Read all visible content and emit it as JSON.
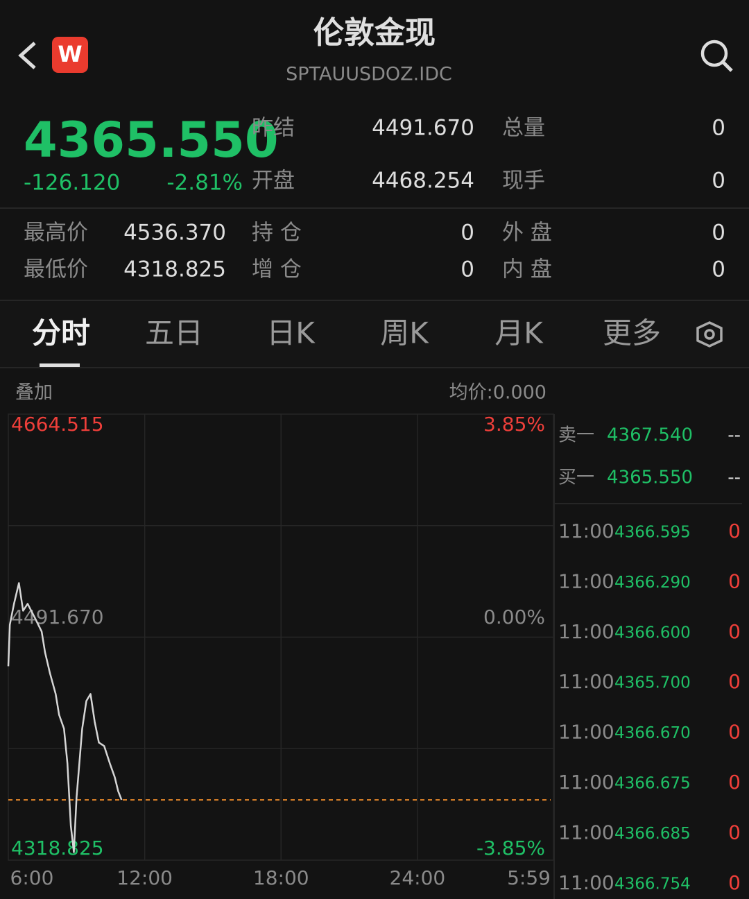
{
  "header": {
    "logo": "W",
    "title": "伦敦金现",
    "code": "SPTAUUSDOZ.IDC"
  },
  "quote": {
    "price": "4365.550",
    "change": "-126.120",
    "change_pct": "-2.81%",
    "stats": [
      {
        "label": "昨结",
        "value": "4491.670"
      },
      {
        "label": "总量",
        "value": 0
      },
      {
        "label": "开盘",
        "value": "4468.254"
      },
      {
        "label": "现手",
        "value": 0
      },
      {
        "label": "最高价",
        "value": "4536.370"
      },
      {
        "label": "持 仓",
        "value": 0
      },
      {
        "label": "外 盘",
        "value": 0
      },
      {
        "label": "最低价",
        "value": "4318.825"
      },
      {
        "label": "增 仓",
        "value": 0
      },
      {
        "label": "内 盘",
        "value": 0
      }
    ]
  },
  "tabs": [
    "分时",
    "五日",
    "日K",
    "周K",
    "月K",
    "更多"
  ],
  "chart_header": {
    "overlay": "叠加",
    "avg_price": "均价:0.000"
  },
  "chart_data": {
    "type": "line",
    "x": [
      0,
      4,
      15,
      28,
      39,
      51,
      70,
      88,
      97,
      110,
      125,
      134,
      147,
      156,
      165,
      173,
      180,
      195,
      206,
      217,
      228,
      239,
      253,
      268,
      281,
      290,
      299
    ],
    "series": [
      {
        "color": "#d6d6d6",
        "values": [
          4469.1,
          4501.3,
          4517.5,
          4533.6,
          4512.1,
          4517.5,
          4506.7,
          4496,
          4479.8,
          4463.6,
          4447.6,
          4431.5,
          4420.7,
          4393.8,
          4345.4,
          4325,
          4367,
          4420.7,
          4442.2,
          4447.6,
          4426.1,
          4410,
          4407.3,
          4393.8,
          4383.1,
          4372.3,
          4365.55
        ]
      }
    ],
    "price_line": {
      "value": 4365.55,
      "color": "#e8892b"
    },
    "xlim": [
      0,
      1439
    ],
    "xticks": [
      {
        "value": 0,
        "label": "6:00"
      },
      {
        "value": 360,
        "label": "12:00"
      },
      {
        "value": 720,
        "label": "18:00"
      },
      {
        "value": 1080,
        "label": "24:00"
      },
      {
        "value": 1439,
        "label": "5:59"
      }
    ],
    "ylim": [
      4318.825,
      4664.515
    ],
    "yticks": [
      4664.515,
      {
        "value": 4491.67,
        "label": "4491.670"
      },
      4318.825
    ],
    "y2lim": [
      -3.85,
      3.85
    ],
    "y2ticks": [
      {
        "value": 3.85,
        "label": "3.85%"
      },
      {
        "value": 0,
        "label": "0.00%"
      },
      {
        "value": -3.85,
        "label": "-3.85%"
      }
    ],
    "grid": true
  },
  "order_book": [
    {
      "label": "卖一",
      "price": "4367.540",
      "volume": "--"
    },
    {
      "label": "买一",
      "price": "4365.550",
      "volume": "--"
    }
  ],
  "trades": [
    {
      "time": "11:00",
      "price": "4366.595",
      "volume": 0
    },
    {
      "time": "11:00",
      "price": "4366.290",
      "volume": 0
    },
    {
      "time": "11:00",
      "price": "4366.600",
      "volume": 0
    },
    {
      "time": "11:00",
      "price": "4365.700",
      "volume": 0
    },
    {
      "time": "11:00",
      "price": "4366.670",
      "volume": 0
    },
    {
      "time": "11:00",
      "price": "4366.675",
      "volume": 0
    },
    {
      "time": "11:00",
      "price": "4366.685",
      "volume": 0
    },
    {
      "time": "11:00",
      "price": "4366.754",
      "volume": 0
    }
  ]
}
